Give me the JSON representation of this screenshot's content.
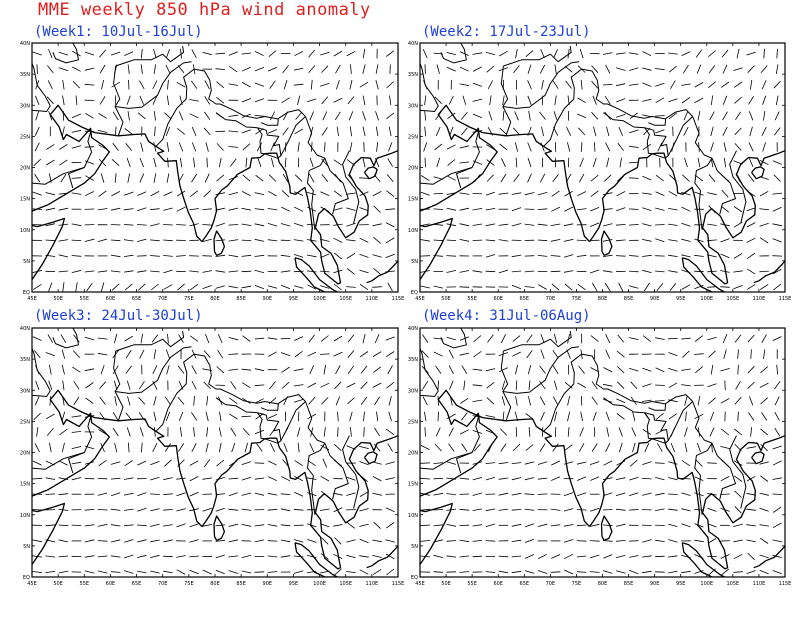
{
  "title": "MME weekly 850 hPa wind anomaly",
  "panels": [
    {
      "label": "(Week1: 10Jul-16Jul)"
    },
    {
      "label": "(Week2: 17Jul-23Jul)"
    },
    {
      "label": "(Week3: 24Jul-30Jul)"
    },
    {
      "label": "(Week4: 31Jul-06Aug)"
    }
  ],
  "map": {
    "lon_ticks": [
      "45E",
      "50E",
      "55E",
      "60E",
      "65E",
      "70E",
      "75E",
      "80E",
      "85E",
      "90E",
      "95E",
      "100E",
      "105E",
      "110E",
      "115E"
    ],
    "lat_ticks": [
      "EQ",
      "5N",
      "10N",
      "15N",
      "20N",
      "25N",
      "30N",
      "35N",
      "40N"
    ],
    "lon_range": [
      45,
      115
    ],
    "lat_range": [
      0,
      40
    ]
  },
  "colors": {
    "title": "#e0201e",
    "panel_label": "#1e3fd8",
    "lines": "#000000"
  }
}
